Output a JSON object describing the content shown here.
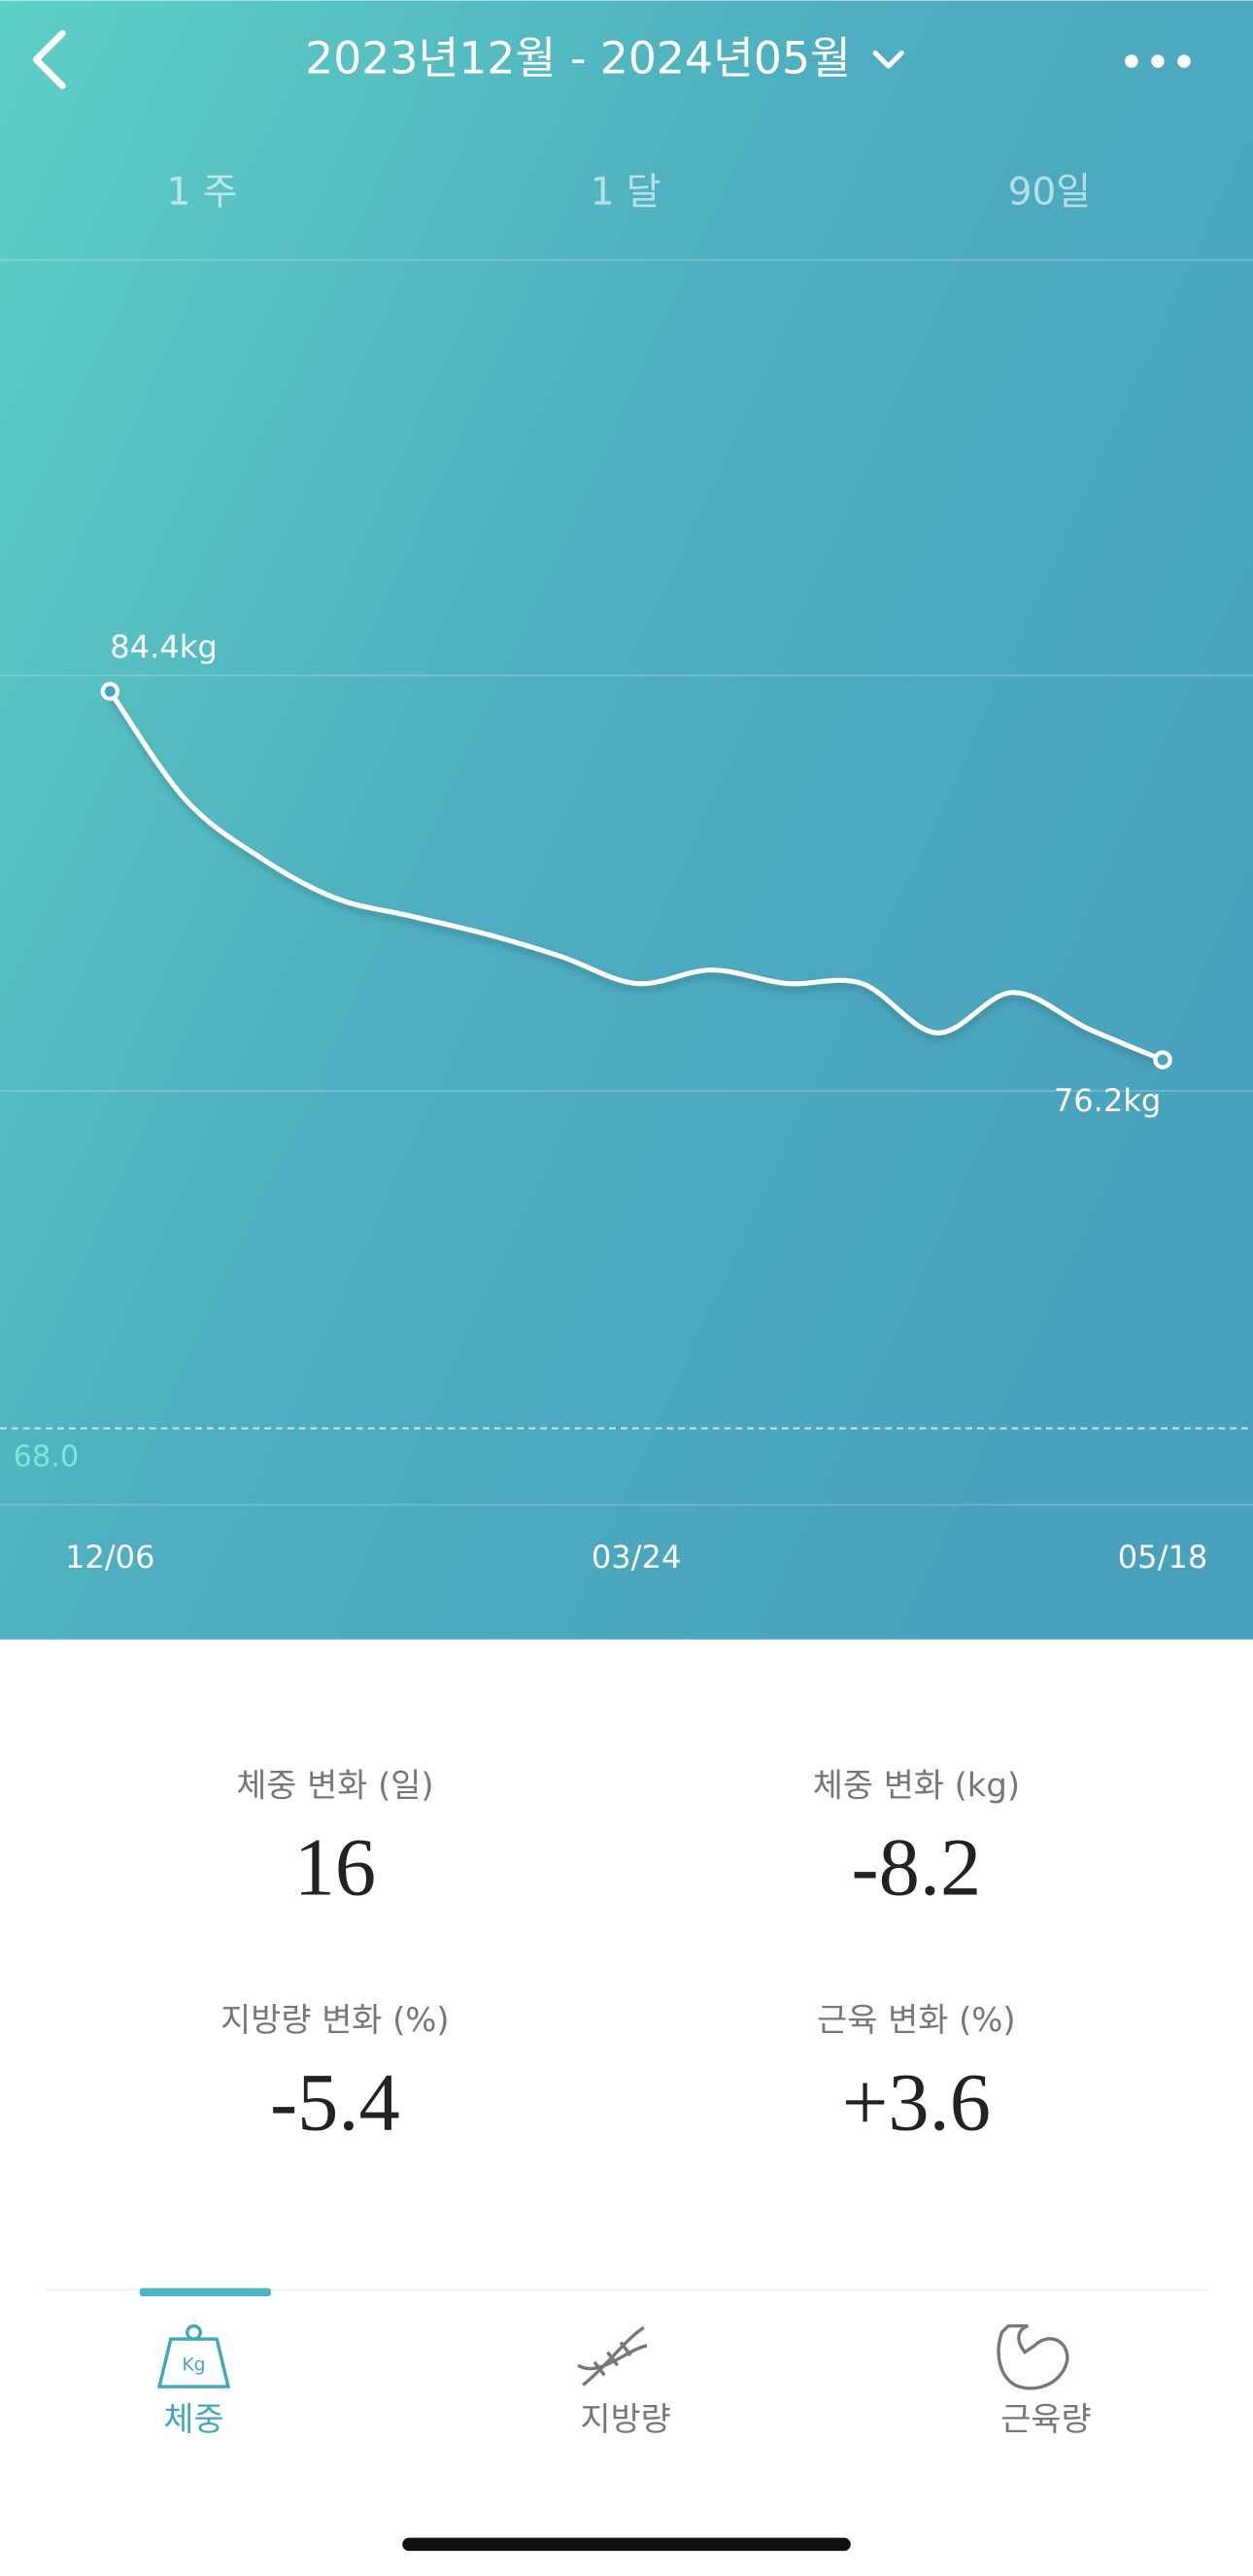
{
  "header": {
    "title": "2023년12월 - 2024년05월"
  },
  "range_tabs": [
    "1 주",
    "1 달",
    "90일"
  ],
  "chart_data": {
    "type": "line",
    "categories": [
      "12/06",
      null,
      null,
      null,
      null,
      null,
      null,
      "03/24",
      null,
      null,
      null,
      null,
      null,
      null,
      "05/18"
    ],
    "values": [
      84.4,
      82.0,
      80.7,
      79.8,
      79.4,
      79.0,
      78.5,
      77.9,
      78.2,
      77.9,
      77.9,
      76.8,
      77.7,
      76.9,
      76.2
    ],
    "value_labels": [
      "84.4kg",
      null,
      null,
      null,
      null,
      null,
      null,
      null,
      null,
      null,
      null,
      null,
      null,
      null,
      "76.2kg"
    ],
    "color": "#ffffff",
    "ylim": [
      66.3,
      94.0
    ],
    "goal": {
      "value": 68.0,
      "label": "68.0"
    }
  },
  "stats": [
    {
      "label": "체중 변화 (일)",
      "value": "16"
    },
    {
      "label": "체중 변화 (kg)",
      "value": "-8.2"
    },
    {
      "label": "지방량 변화 (%)",
      "value": "-5.4"
    },
    {
      "label": "근육 변화 (%)",
      "value": "+3.6"
    }
  ],
  "bottom_tabs": [
    "체중",
    "지방량",
    "근육량"
  ]
}
